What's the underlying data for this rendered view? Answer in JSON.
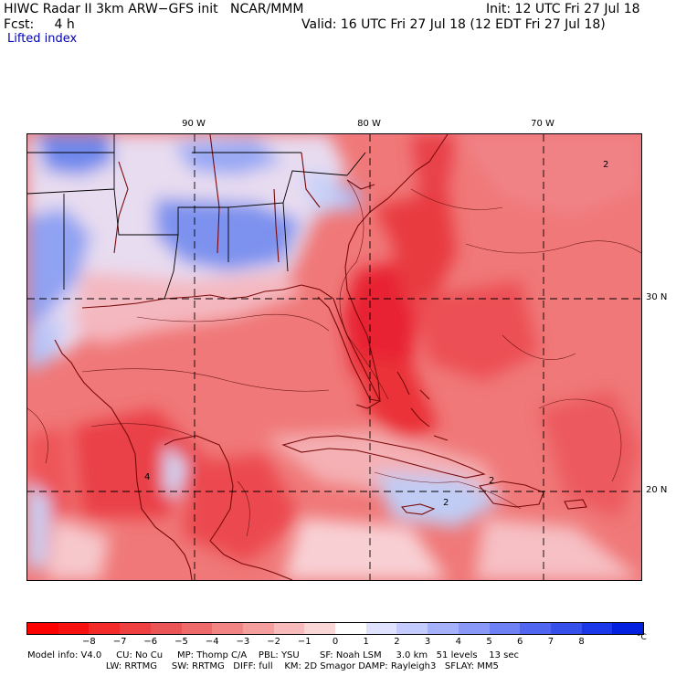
{
  "header": {
    "model_line": "HIWC Radar II 3km ARW−GFS init   NCAR/MMM",
    "init_line": "Init: 12 UTC Fri 27 Jul 18",
    "fcst_line": "Fcst:     4 h",
    "valid_line": "Valid: 16 UTC Fri 27 Jul 18 (12 EDT Fri 27 Jul 18)",
    "field_name": "Lifted index"
  },
  "map": {
    "longitude_labels": [
      "90 W",
      "80 W",
      "70 W"
    ],
    "latitude_labels": [
      "30 N",
      "20 N"
    ],
    "contour_labels": [
      "2",
      "4",
      "2",
      "2"
    ],
    "colors": {
      "land_outline": "#7a0a0a",
      "grid": "#000000",
      "deep_red": "#e8202a",
      "mid_red": "#f07070",
      "pale": "#f8d8d8",
      "blue": "#8098f0"
    }
  },
  "colorbar": {
    "ticks": [
      "−8",
      "−7",
      "−6",
      "−5",
      "−4",
      "−3",
      "−2",
      "−1",
      "0",
      "1",
      "2",
      "3",
      "4",
      "5",
      "6",
      "7",
      "8"
    ],
    "unit": "°C",
    "colors": [
      "#ff0000",
      "#f81010",
      "#f22a2a",
      "#ee4040",
      "#ec5555",
      "#ef6a6a",
      "#f28484",
      "#f59e9e",
      "#f8baba",
      "#fbd6d6",
      "#ffffff",
      "#dfe3ff",
      "#c3cbff",
      "#a6b1fb",
      "#8a99f8",
      "#6d80f4",
      "#5066f0",
      "#3650ec",
      "#1a38e8",
      "#0020e0"
    ]
  },
  "footer": {
    "line1": "Model info: V4.0     CU: No Cu     MP: Thomp C/A    PBL: YSU       SF: Noah LSM     3.0 km   51 levels    13 sec",
    "line2": "                           LW: RRTMG     SW: RRTMG   DIFF: full    KM: 2D Smagor DAMP: Rayleigh3   SFLAY: MM5"
  }
}
